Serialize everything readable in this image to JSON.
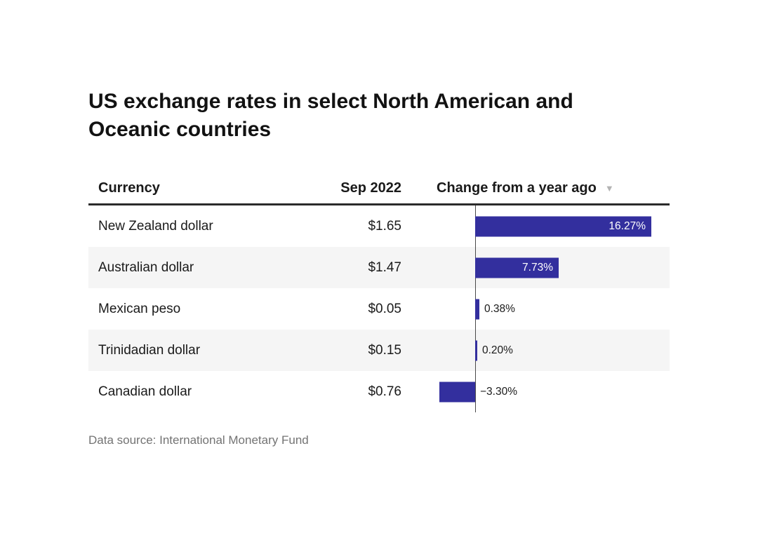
{
  "title_lines": [
    "US exchange rates in select North American and",
    "Oceanic countries"
  ],
  "header": {
    "currency": "Currency",
    "rate": "Sep 2022",
    "change": "Change from a year ago",
    "sort_icon": "▼"
  },
  "rows": [
    {
      "currency": "New Zealand dollar",
      "rate": "$1.65",
      "change": 16.27,
      "change_label": "16.27%"
    },
    {
      "currency": "Australian dollar",
      "rate": "$1.47",
      "change": 7.73,
      "change_label": "7.73%"
    },
    {
      "currency": "Mexican peso",
      "rate": "$0.05",
      "change": 0.38,
      "change_label": "0.38%"
    },
    {
      "currency": "Trinidadian dollar",
      "rate": "$0.15",
      "change": 0.2,
      "change_label": "0.20%"
    },
    {
      "currency": "Canadian dollar",
      "rate": "$0.76",
      "change": -3.3,
      "change_label": "−3.30%"
    }
  ],
  "source": "Data source: International Monetary Fund",
  "colors": {
    "bar": "#332f9e",
    "bar_label_inside": "#ffffff",
    "bar_label_outside": "#1a1a1a",
    "row_stripe": "#f5f5f5",
    "header_rule": "#2b2b2b",
    "zero_axis": "#4a4a4a",
    "source_text": "#737373",
    "sort_icon": "#b3b3b3"
  },
  "chart_data": {
    "type": "bar",
    "orientation": "horizontal",
    "title": "US exchange rates in select North American and Oceanic countries",
    "categories": [
      "New Zealand dollar",
      "Australian dollar",
      "Mexican peso",
      "Trinidadian dollar",
      "Canadian dollar"
    ],
    "series": [
      {
        "name": "Sep 2022",
        "unit": "USD",
        "values": [
          1.65,
          1.47,
          0.05,
          0.15,
          0.76
        ]
      },
      {
        "name": "Change from a year ago",
        "unit": "%",
        "values": [
          16.27,
          7.73,
          0.38,
          0.2,
          -3.3
        ]
      }
    ],
    "sorted_by": "Change from a year ago (descending)",
    "baseline": 0,
    "grid": false,
    "legend_position": "none",
    "source": "Data source: International Monetary Fund"
  }
}
